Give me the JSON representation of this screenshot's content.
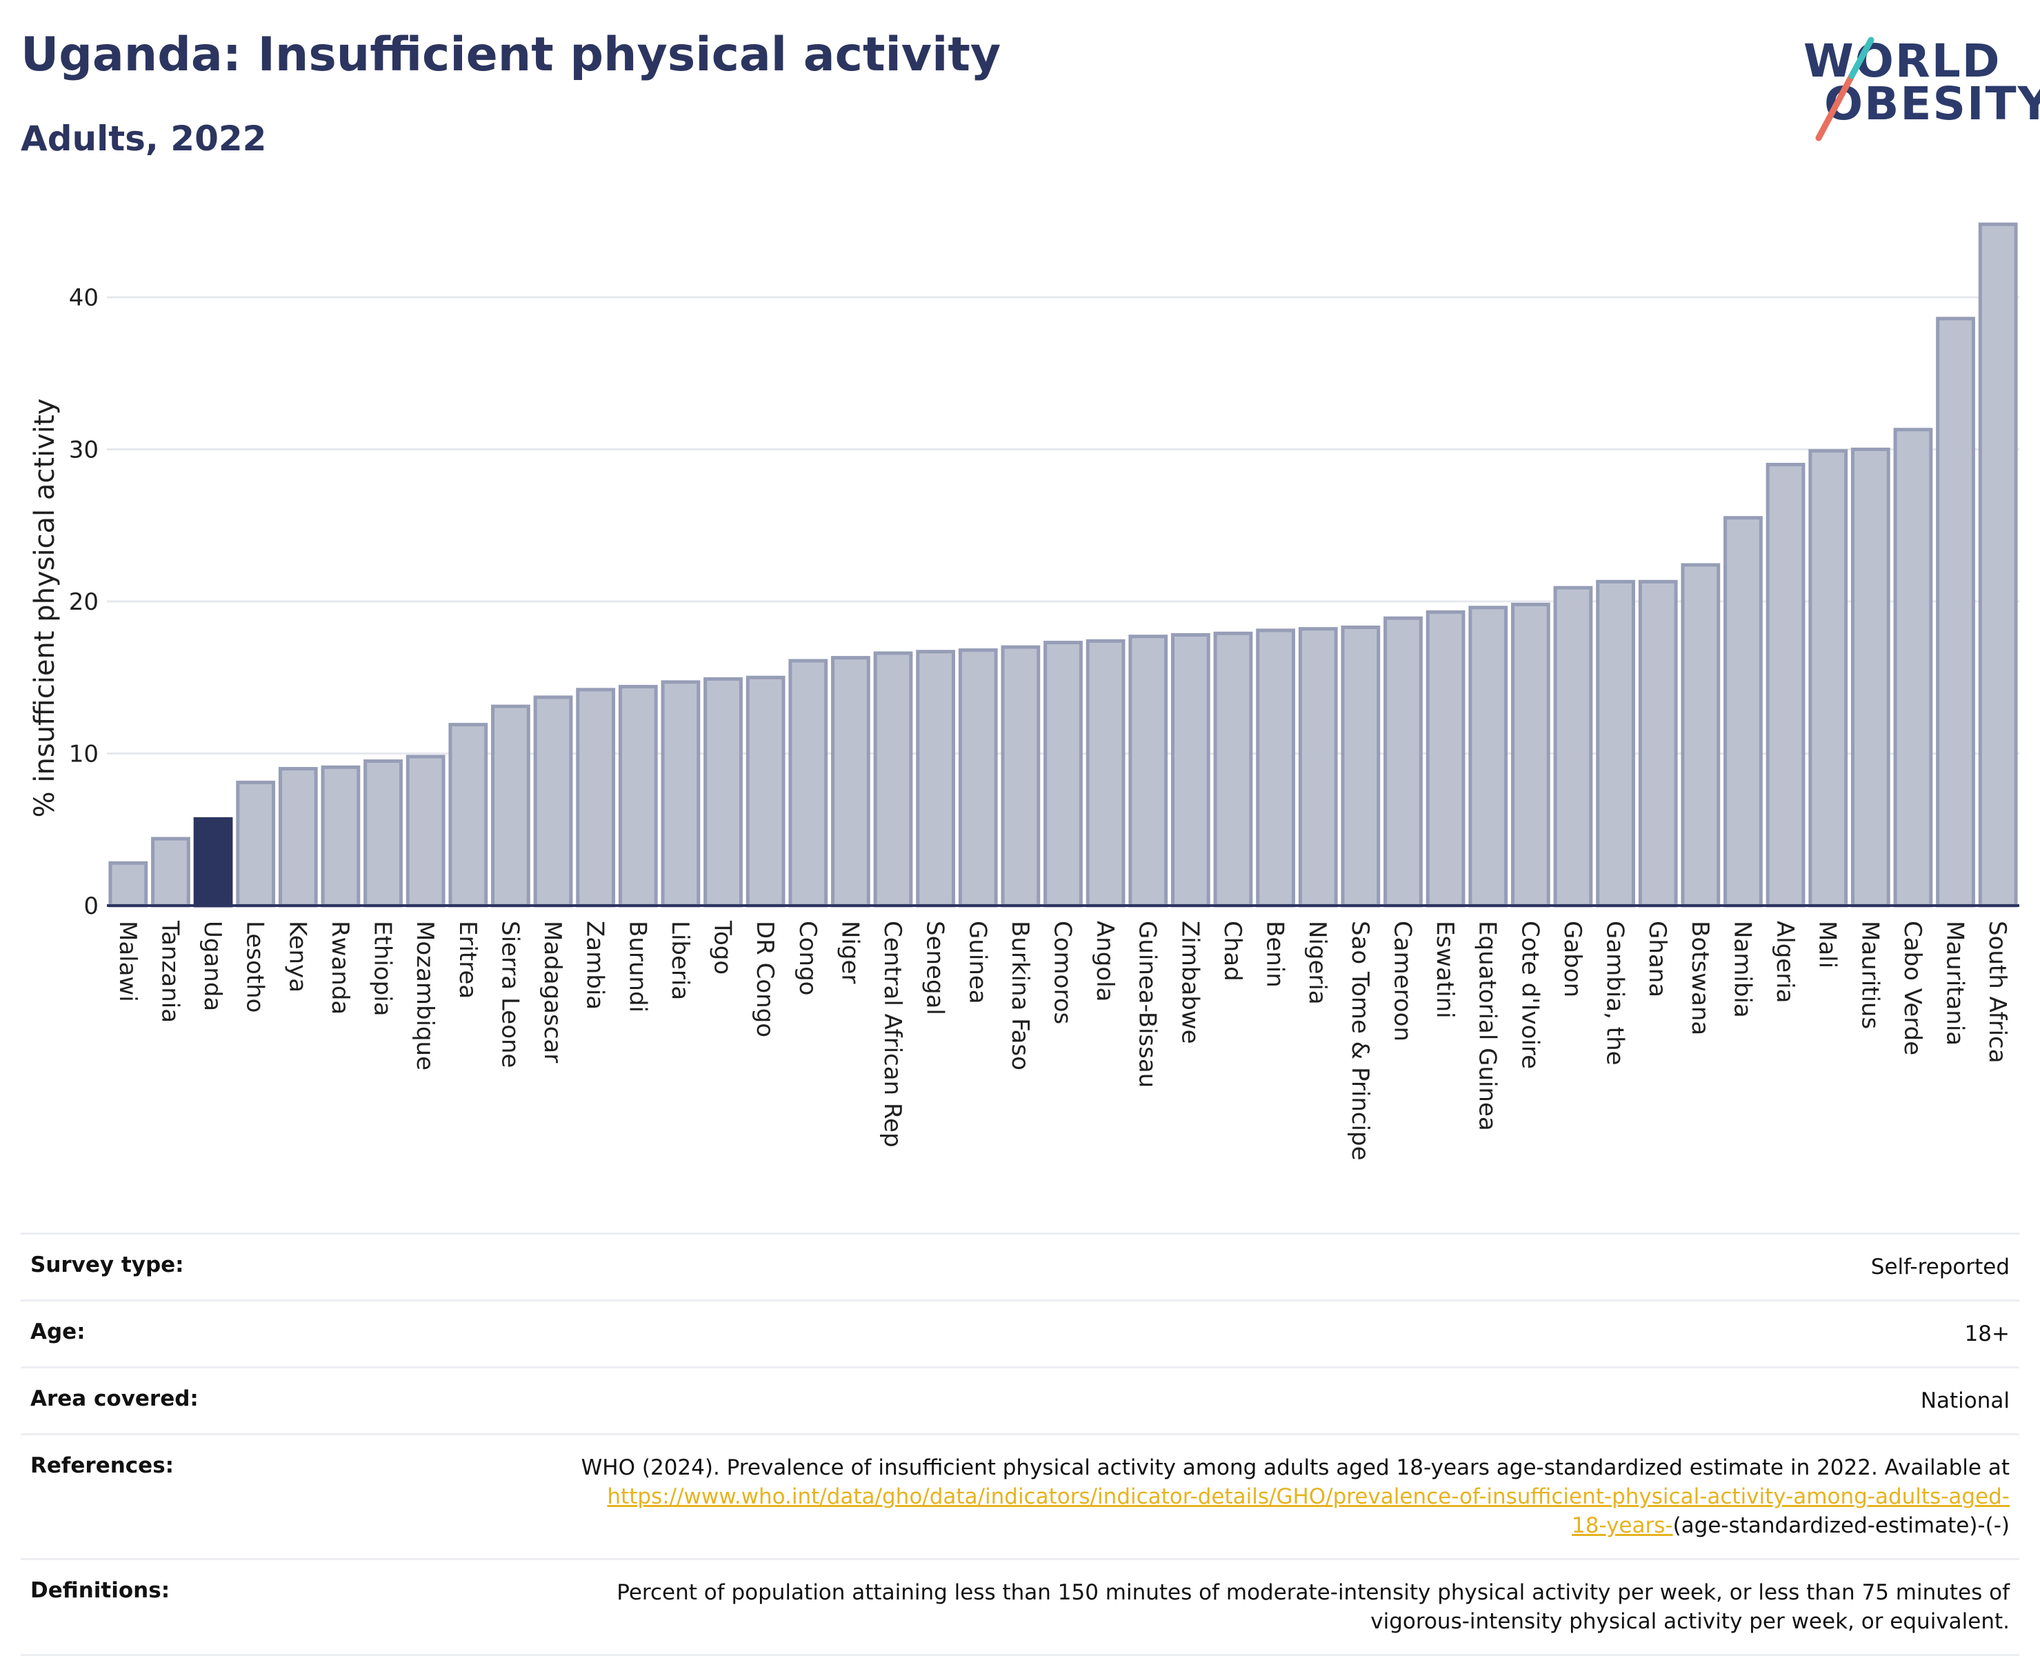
{
  "header": {
    "title": "Uganda: Insufficient physical activity",
    "subtitle": "Adults, 2022"
  },
  "logo": {
    "line1": "WORLD",
    "line2": "OBESITY",
    "colors": {
      "text": "#2c3b6b",
      "stroke_red": "#e8705f",
      "stroke_teal": "#3fbfbf"
    }
  },
  "chart_data": {
    "type": "bar",
    "title": "",
    "xlabel": "",
    "ylabel": "% insufficient physical activity",
    "ylim": [
      0,
      45
    ],
    "yticks": [
      0,
      10,
      20,
      30,
      40
    ],
    "grid": true,
    "highlight": "Uganda",
    "colors": {
      "default_fill": "#bcc1d0",
      "default_stroke": "#969db6",
      "highlight": "#2c355f"
    },
    "categories": [
      "Malawi",
      "Tanzania",
      "Uganda",
      "Lesotho",
      "Kenya",
      "Rwanda",
      "Ethiopia",
      "Mozambique",
      "Eritrea",
      "Sierra Leone",
      "Madagascar",
      "Zambia",
      "Burundi",
      "Liberia",
      "Togo",
      "DR Congo",
      "Congo",
      "Niger",
      "Central African Rep",
      "Senegal",
      "Guinea",
      "Burkina Faso",
      "Comoros",
      "Angola",
      "Guinea-Bissau",
      "Zimbabwe",
      "Chad",
      "Benin",
      "Nigeria",
      "Sao Tome & Principe",
      "Cameroon",
      "Eswatini",
      "Equatorial Guinea",
      "Cote d'Ivoire",
      "Gabon",
      "Gambia, the",
      "Ghana",
      "Botswana",
      "Namibia",
      "Algeria",
      "Mali",
      "Mauritius",
      "Cabo Verde",
      "Mauritania",
      "South Africa"
    ],
    "values": [
      2.8,
      4.4,
      5.7,
      8.1,
      9.0,
      9.1,
      9.5,
      9.8,
      11.9,
      13.1,
      13.7,
      14.2,
      14.4,
      14.7,
      14.9,
      15.0,
      16.1,
      16.3,
      16.6,
      16.7,
      16.8,
      17.0,
      17.3,
      17.4,
      17.7,
      17.8,
      17.9,
      18.1,
      18.2,
      18.3,
      18.9,
      19.3,
      19.6,
      19.8,
      20.9,
      21.3,
      21.3,
      22.4,
      25.5,
      29.0,
      29.9,
      30.0,
      31.3,
      38.6,
      44.8
    ]
  },
  "info": {
    "survey_type": {
      "label": "Survey type:",
      "value": "Self-reported"
    },
    "age": {
      "label": "Age:",
      "value": "18+"
    },
    "area": {
      "label": "Area covered:",
      "value": "National"
    },
    "references": {
      "label": "References:",
      "text": "WHO (2024). Prevalence of insufficient physical activity among adults aged 18-years age-standardized estimate in 2022. Available at",
      "link_line1": "https://www.who.int/data/gho/data/indicators/indicator-details/GHO/prevalence-of-insufficient-physical-activity-among-adults-aged-",
      "link_line2": "18-years-",
      "suffix": "(age-standardized-estimate)-(-)"
    },
    "definitions": {
      "label": "Definitions:",
      "line1": "Percent of population attaining less than 150 minutes of moderate-intensity physical activity per week, or less than 75 minutes of",
      "line2": "vigorous-intensity physical activity per week, or equivalent."
    }
  }
}
